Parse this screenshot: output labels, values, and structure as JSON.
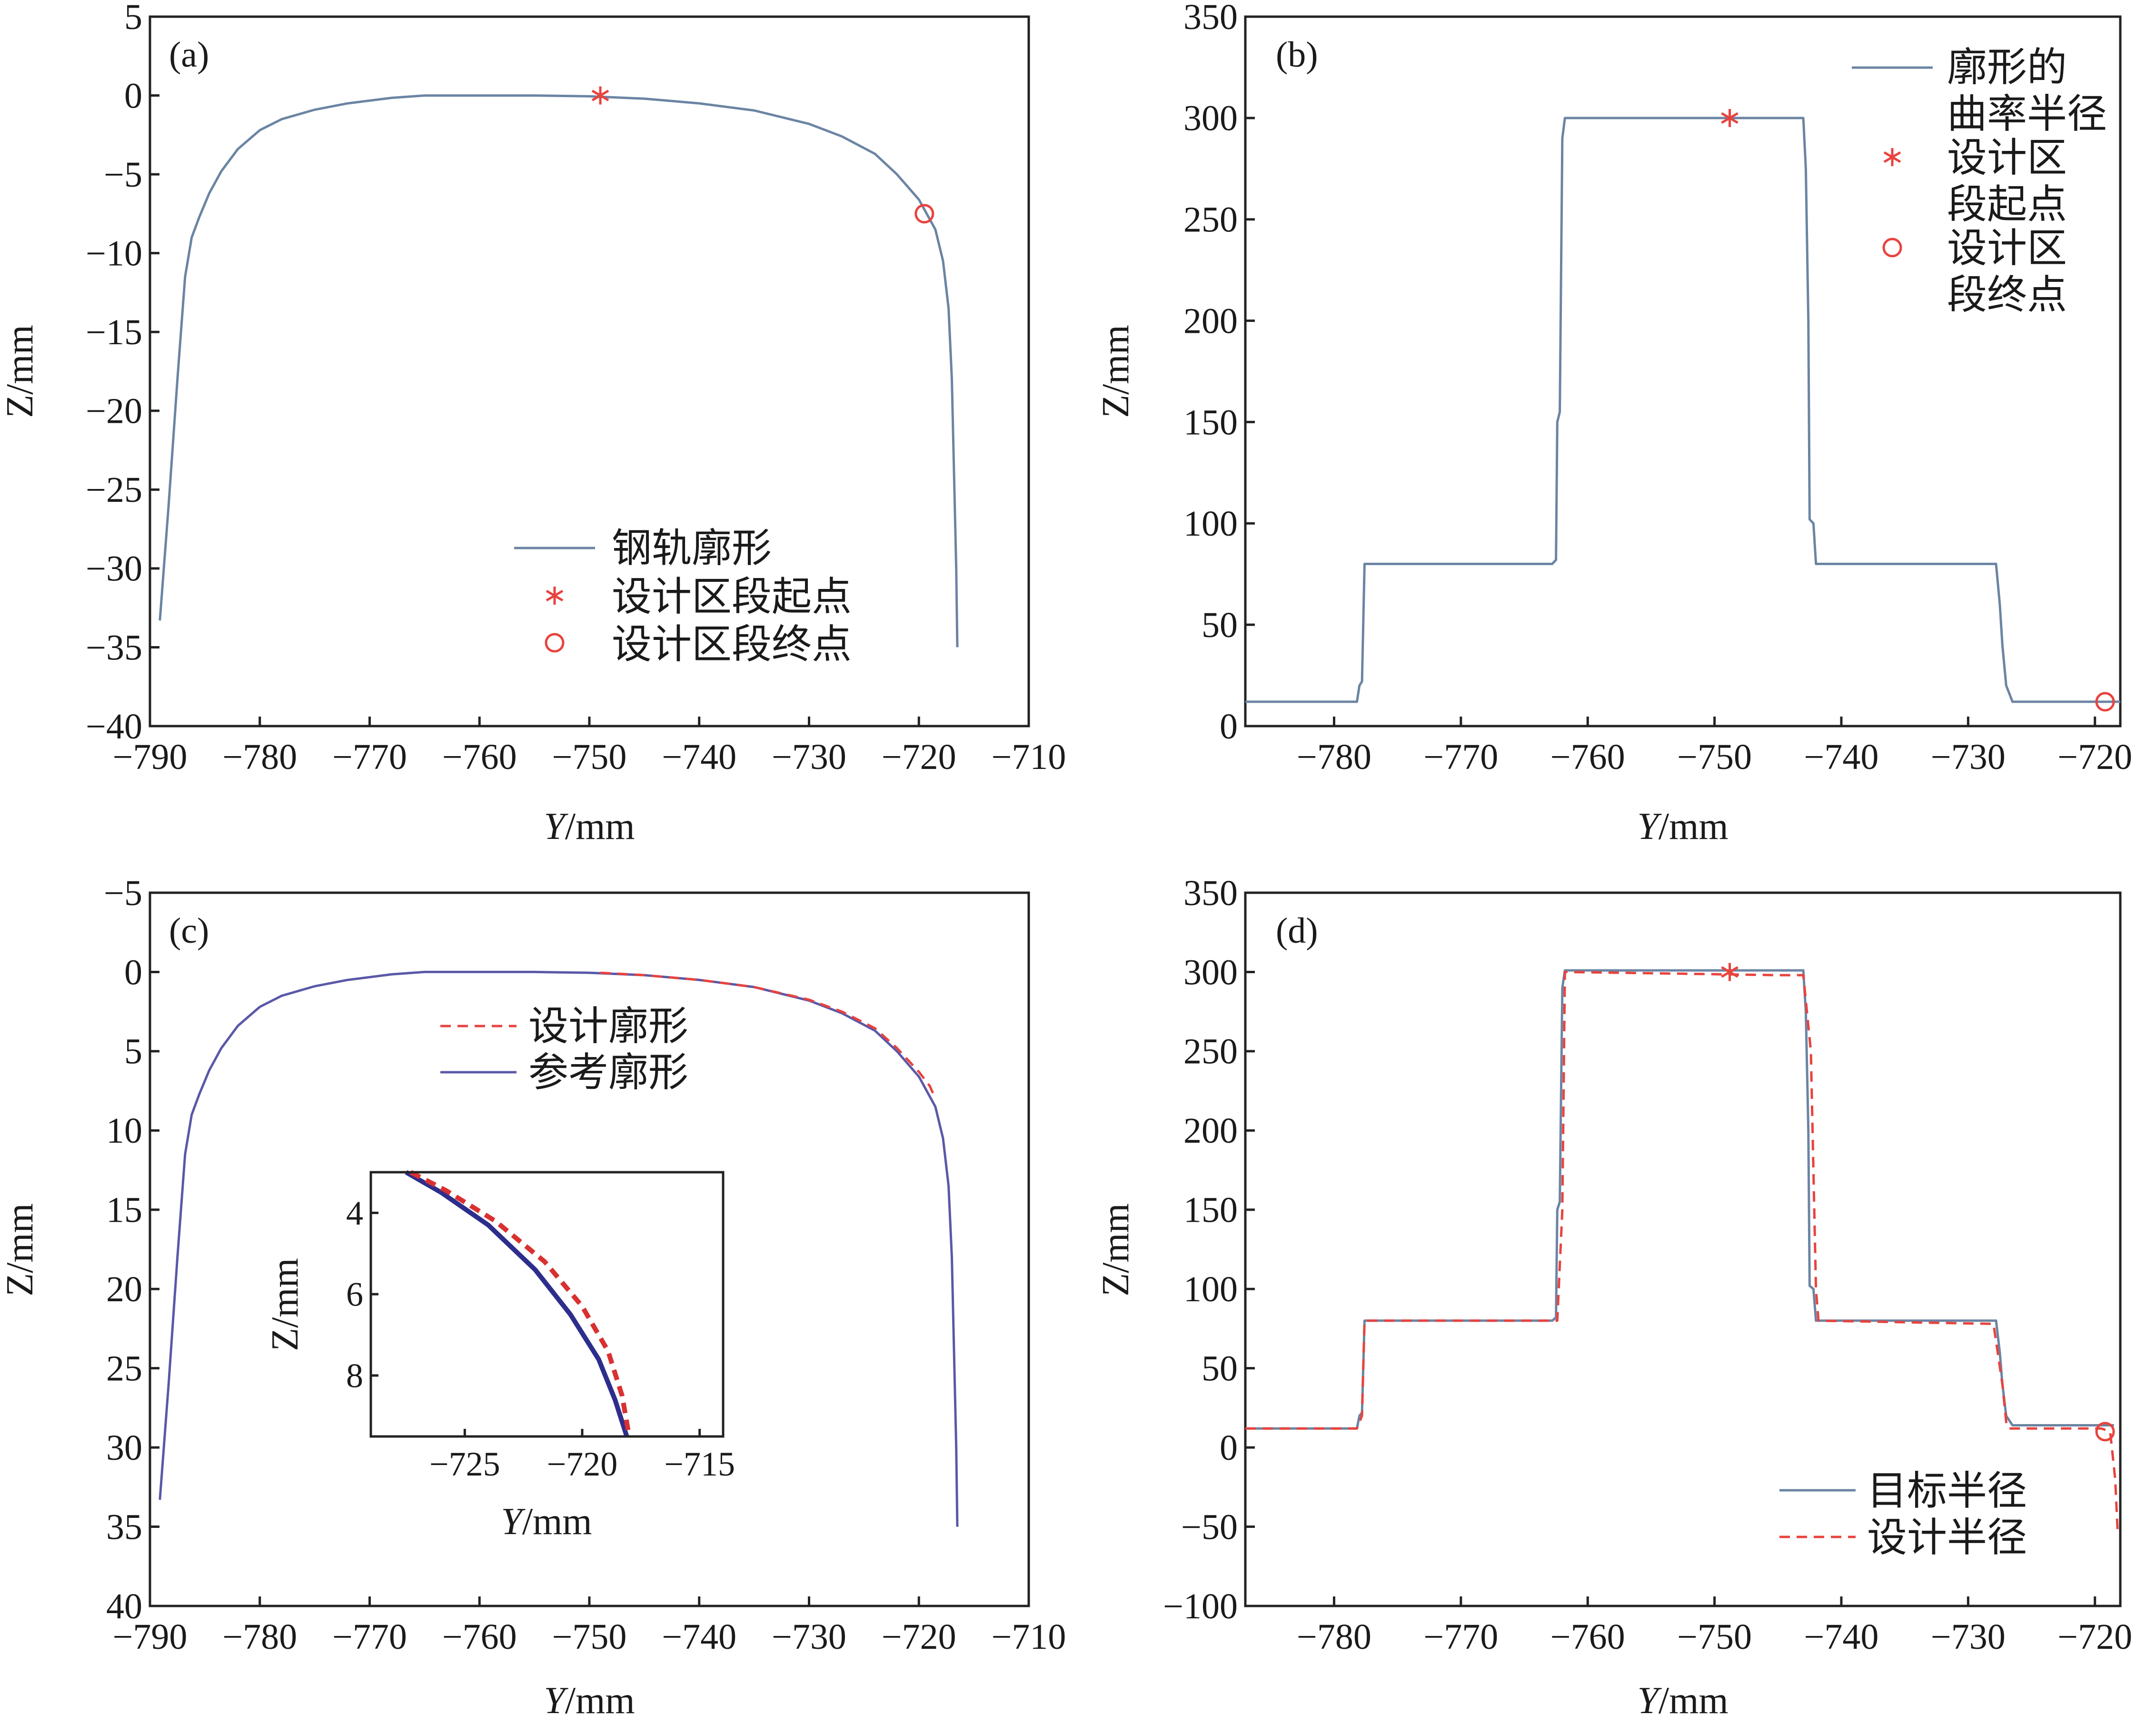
{
  "chart_data": [
    {
      "id": "a",
      "type": "line",
      "panel_label": "(a)",
      "xlabel_italic": "Y",
      "xlabel_unit": "/mm",
      "ylabel": "Z/mm",
      "xlim": [
        -790,
        -710
      ],
      "ylim": [
        -40,
        5
      ],
      "xticks": [
        -790,
        -780,
        -770,
        -760,
        -750,
        -740,
        -730,
        -720,
        -710
      ],
      "xtick_labels": [
        "−790",
        "−780",
        "−770",
        "−760",
        "−750",
        "−740",
        "−730",
        "−720",
        "−710"
      ],
      "yticks": [
        5,
        0,
        -5,
        -10,
        -15,
        -20,
        -25,
        -30,
        -35,
        -40
      ],
      "ytick_labels": [
        "5",
        "0",
        "−5",
        "−10",
        "−15",
        "−20",
        "−25",
        "−30",
        "−35",
        "−40"
      ],
      "series": [
        {
          "name": "钢轨廓形",
          "style": "line",
          "color": "#6b84a3",
          "x": [
            -789.1,
            -788.3,
            -787.5,
            -786.8,
            -786.2,
            -785.5,
            -784.6,
            -783.5,
            -782.0,
            -780.0,
            -778.0,
            -775.0,
            -772.0,
            -768.0,
            -765.0,
            -760.0,
            -755.0,
            -750.0,
            -745.0,
            -740.0,
            -735.0,
            -730.0,
            -727.0,
            -724.0,
            -722.0,
            -720.0,
            -718.5,
            -717.8,
            -717.3,
            -717.0,
            -716.8,
            -716.6,
            -716.5
          ],
          "y": [
            -33.3,
            -26.0,
            -18.0,
            -11.5,
            -9.0,
            -7.7,
            -6.2,
            -4.8,
            -3.4,
            -2.2,
            -1.5,
            -0.9,
            -0.5,
            -0.15,
            0.0,
            0.0,
            0.0,
            -0.05,
            -0.2,
            -0.5,
            -0.95,
            -1.8,
            -2.6,
            -3.7,
            -5.0,
            -6.6,
            -8.5,
            -10.5,
            -13.5,
            -18.0,
            -24.0,
            -30.0,
            -35.0
          ]
        },
        {
          "name": "设计区段起点",
          "style": "star",
          "color": "#e8433e",
          "x": [
            -749.0
          ],
          "y": [
            0.0
          ]
        },
        {
          "name": "设计区段终点",
          "style": "circle",
          "color": "#e8433e",
          "x": [
            -719.5
          ],
          "y": [
            -7.5
          ]
        }
      ],
      "legend": [
        "钢轨廓形",
        "设计区段起点",
        "设计区段终点"
      ],
      "legend_position": "lower-right"
    },
    {
      "id": "b",
      "type": "line",
      "panel_label": "(b)",
      "xlabel_italic": "Y",
      "xlabel_unit": "/mm",
      "ylabel": "Z/mm",
      "xlim": [
        -787,
        -718
      ],
      "ylim": [
        0,
        350
      ],
      "xticks": [
        -780,
        -770,
        -760,
        -750,
        -740,
        -730,
        -720
      ],
      "xtick_labels": [
        "−780",
        "−770",
        "−760",
        "−750",
        "−740",
        "−730",
        "−720"
      ],
      "yticks": [
        0,
        50,
        100,
        150,
        200,
        250,
        300,
        350
      ],
      "ytick_labels": [
        "0",
        "50",
        "100",
        "150",
        "200",
        "250",
        "300",
        "350"
      ],
      "series": [
        {
          "name": "廓形的曲率半径",
          "style": "line",
          "color": "#6b84a3",
          "x": [
            -787.0,
            -778.2,
            -778.0,
            -777.8,
            -777.6,
            -777.5,
            -762.8,
            -762.5,
            -762.4,
            -762.2,
            -762.0,
            -761.8,
            -743.0,
            -742.8,
            -742.6,
            -742.5,
            -742.2,
            -742.0,
            -727.8,
            -727.5,
            -727.3,
            -727.0,
            -726.5,
            -718.0
          ],
          "y": [
            12.0,
            12.0,
            20.0,
            22.0,
            80.0,
            80.0,
            80.0,
            82.0,
            150.0,
            155.0,
            290.0,
            300.0,
            300.0,
            275.0,
            200.0,
            102.0,
            100.0,
            80.0,
            80.0,
            60.0,
            40.0,
            20.0,
            12.0,
            12.0
          ]
        },
        {
          "name": "设计区段起点",
          "style": "star",
          "color": "#e8433e",
          "x": [
            -748.8
          ],
          "y": [
            300.0
          ]
        },
        {
          "name": "设计区段终点",
          "style": "circle",
          "color": "#e8433e",
          "x": [
            -719.2
          ],
          "y": [
            12.0
          ]
        }
      ],
      "legend": [
        "廓形的曲率半径",
        "设计区段起点",
        "设计区段终点"
      ],
      "legend_lines": [
        [
          "廓形的",
          "曲率半径"
        ],
        [
          "设计区",
          "段起点"
        ],
        [
          "设计区",
          "段终点"
        ]
      ],
      "legend_position": "top-right"
    },
    {
      "id": "c",
      "type": "line",
      "panel_label": "(c)",
      "xlabel_italic": "Y",
      "xlabel_unit": "/mm",
      "ylabel": "Z/mm",
      "xlim": [
        -790,
        -710
      ],
      "ylim": [
        40,
        -5
      ],
      "xticks": [
        -790,
        -780,
        -770,
        -760,
        -750,
        -740,
        -730,
        -720,
        -710
      ],
      "xtick_labels": [
        "−790",
        "−780",
        "−770",
        "−760",
        "−750",
        "−740",
        "−730",
        "−720",
        "−710"
      ],
      "yticks": [
        -5,
        0,
        5,
        10,
        15,
        20,
        25,
        30,
        35,
        40
      ],
      "ytick_labels": [
        "−5",
        "0",
        "5",
        "10",
        "15",
        "20",
        "25",
        "30",
        "35",
        "40"
      ],
      "series": [
        {
          "name": "参考廓形",
          "style": "line",
          "color": "#5a58a8",
          "x": [
            -789.1,
            -788.3,
            -787.5,
            -786.8,
            -786.2,
            -785.5,
            -784.6,
            -783.5,
            -782.0,
            -780.0,
            -778.0,
            -775.0,
            -772.0,
            -768.0,
            -765.0,
            -760.0,
            -755.0,
            -750.0,
            -745.0,
            -740.0,
            -735.0,
            -730.0,
            -727.0,
            -724.0,
            -722.0,
            -720.0,
            -718.5,
            -717.8,
            -717.3,
            -717.0,
            -716.8,
            -716.6,
            -716.5
          ],
          "y": [
            33.3,
            26.0,
            18.0,
            11.5,
            9.0,
            7.7,
            6.2,
            4.8,
            3.4,
            2.2,
            1.5,
            0.9,
            0.5,
            0.15,
            0.0,
            0.0,
            0.0,
            0.05,
            0.2,
            0.5,
            0.95,
            1.8,
            2.6,
            3.7,
            5.0,
            6.6,
            8.5,
            10.5,
            13.5,
            18.0,
            24.0,
            30.0,
            35.0
          ]
        },
        {
          "name": "设计廓形",
          "style": "dashed",
          "color": "#e8433e",
          "x": [
            -749.0,
            -745.0,
            -740.0,
            -735.0,
            -730.0,
            -727.0,
            -724.0,
            -722.0,
            -720.0,
            -719.0,
            -718.5
          ],
          "y": [
            0.05,
            0.2,
            0.5,
            0.95,
            1.75,
            2.5,
            3.55,
            4.8,
            6.3,
            7.2,
            8.0
          ]
        }
      ],
      "legend": [
        "设计廓形",
        "参考廓形"
      ],
      "legend_position": "upper-middle",
      "inset": {
        "xlabel_italic": "Y",
        "xlabel_unit": "/mm",
        "ylabel": "Z/mm",
        "xlim": [
          -729,
          -714
        ],
        "ylim": [
          3,
          9.5
        ],
        "xticks": [
          -725,
          -720,
          -715
        ],
        "xtick_labels": [
          "−725",
          "−720",
          "−715"
        ],
        "yticks": [
          4,
          6,
          8
        ],
        "ytick_labels": [
          "4",
          "6",
          "8"
        ],
        "series": [
          {
            "name": "参考廓形",
            "style": "line",
            "color": "#2d2e8c",
            "x": [
              -727.5,
              -726.0,
              -724.0,
              -722.0,
              -720.5,
              -719.3,
              -718.6,
              -718.1
            ],
            "y": [
              3.0,
              3.5,
              4.3,
              5.4,
              6.5,
              7.6,
              8.6,
              9.5
            ]
          },
          {
            "name": "设计廓形",
            "style": "dashed",
            "color": "#d93030",
            "x": [
              -727.3,
              -725.8,
              -723.7,
              -721.6,
              -720.0,
              -718.9,
              -718.3,
              -718.0
            ],
            "y": [
              3.0,
              3.45,
              4.2,
              5.2,
              6.3,
              7.4,
              8.5,
              9.5
            ]
          }
        ]
      }
    },
    {
      "id": "d",
      "type": "line",
      "panel_label": "(d)",
      "xlabel_italic": "Y",
      "xlabel_unit": "/mm",
      "ylabel": "Z/mm",
      "xlim": [
        -787,
        -718
      ],
      "ylim": [
        -100,
        350
      ],
      "xticks": [
        -780,
        -770,
        -760,
        -750,
        -740,
        -730,
        -720
      ],
      "xtick_labels": [
        "−780",
        "−770",
        "−760",
        "−750",
        "−740",
        "−730",
        "−720"
      ],
      "yticks": [
        -100,
        -50,
        0,
        50,
        100,
        150,
        200,
        250,
        300,
        350
      ],
      "ytick_labels": [
        "−100",
        "−50",
        "0",
        "50",
        "100",
        "150",
        "200",
        "250",
        "300",
        "350"
      ],
      "series": [
        {
          "name": "目标半径",
          "style": "line",
          "color": "#6b84a3",
          "x": [
            -787.0,
            -778.2,
            -778.0,
            -777.8,
            -777.6,
            -777.5,
            -762.8,
            -762.5,
            -762.4,
            -762.2,
            -762.0,
            -761.8,
            -743.0,
            -742.8,
            -742.6,
            -742.5,
            -742.2,
            -742.0,
            -727.8,
            -727.5,
            -727.3,
            -727.0,
            -726.5,
            -718.5
          ],
          "y": [
            12.0,
            12.0,
            20.0,
            22.0,
            80.0,
            80.0,
            80.0,
            82.0,
            150.0,
            155.0,
            290.0,
            301.0,
            301.0,
            275.0,
            200.0,
            102.0,
            100.0,
            80.0,
            80.0,
            60.0,
            40.0,
            20.0,
            14.0,
            14.0
          ]
        },
        {
          "name": "设计半径",
          "style": "dashed",
          "color": "#e8433e",
          "x": [
            -787.0,
            -778.2,
            -777.8,
            -777.6,
            -762.4,
            -762.0,
            -761.8,
            -745.0,
            -743.0,
            -742.4,
            -742.0,
            -741.8,
            -728.0,
            -727.3,
            -727.0,
            -726.8,
            -719.5,
            -718.8,
            -718.4,
            -718.2
          ],
          "y": [
            12.0,
            12.0,
            20.0,
            80.0,
            80.0,
            150.0,
            300.0,
            298.0,
            298.0,
            250.0,
            100.0,
            80.0,
            78.0,
            40.0,
            16.0,
            12.0,
            12.0,
            10.0,
            -20.0,
            -55.0
          ]
        },
        {
          "name": "设计区段起点",
          "style": "star",
          "color": "#e8433e",
          "x": [
            -748.8
          ],
          "y": [
            300.0
          ]
        },
        {
          "name": "设计区段终点",
          "style": "circle",
          "color": "#e8433e",
          "x": [
            -719.2
          ],
          "y": [
            10.0
          ]
        }
      ],
      "legend": [
        "目标半径",
        "设计半径"
      ],
      "legend_position": "lower-right"
    }
  ]
}
